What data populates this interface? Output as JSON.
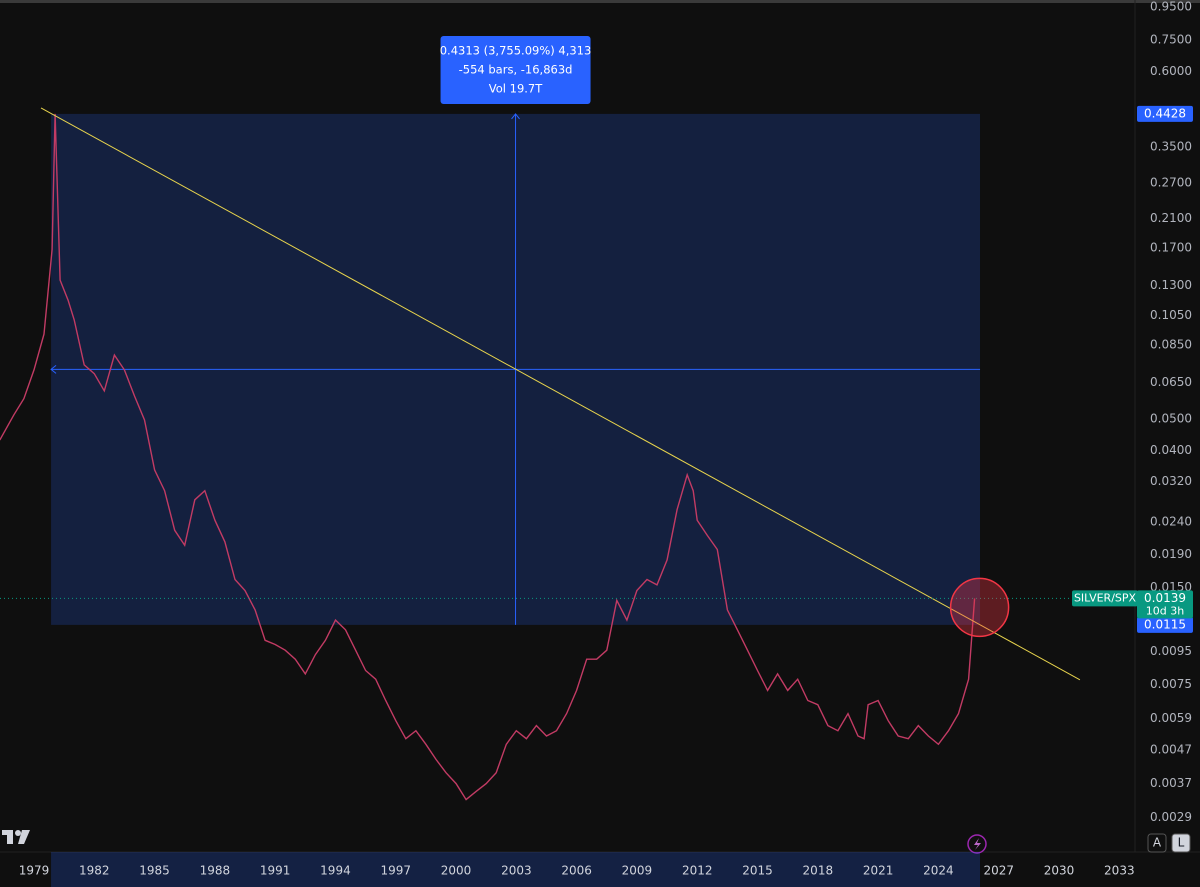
{
  "chart_data": {
    "type": "line",
    "log_scale": true,
    "symbol": "SILVER/SPX",
    "countdown": "10d 3h",
    "color": "#c23b64",
    "last_color": "#089981",
    "x": [
      1977.3,
      1978.0,
      1978.5,
      1979.0,
      1979.5,
      1979.9,
      1980.05,
      1980.3,
      1980.7,
      1981.0,
      1981.5,
      1982.0,
      1982.5,
      1983.0,
      1983.5,
      1984.0,
      1984.5,
      1985.0,
      1985.5,
      1986.0,
      1986.5,
      1987.0,
      1987.5,
      1988.0,
      1988.5,
      1989.0,
      1989.5,
      1990.0,
      1990.5,
      1991.0,
      1991.5,
      1992.0,
      1992.5,
      1993.0,
      1993.5,
      1994.0,
      1994.5,
      1995.0,
      1995.5,
      1996.0,
      1996.5,
      1997.0,
      1997.5,
      1998.0,
      1998.5,
      1999.0,
      1999.5,
      2000.0,
      2000.5,
      2001.0,
      2001.5,
      2002.0,
      2002.5,
      2003.0,
      2003.5,
      2004.0,
      2004.5,
      2005.0,
      2005.5,
      2006.0,
      2006.5,
      2007.0,
      2007.5,
      2008.0,
      2008.5,
      2009.0,
      2009.5,
      2010.0,
      2010.5,
      2011.0,
      2011.5,
      2011.8,
      2012.0,
      2012.5,
      2013.0,
      2013.5,
      2014.0,
      2014.5,
      2015.0,
      2015.5,
      2016.0,
      2016.5,
      2017.0,
      2017.5,
      2018.0,
      2018.5,
      2019.0,
      2019.5,
      2020.0,
      2020.3,
      2020.5,
      2021.0,
      2021.5,
      2022.0,
      2022.5,
      2023.0,
      2023.5,
      2024.0,
      2024.5,
      2025.0,
      2025.5,
      2025.8
    ],
    "values": [
      0.0431,
      0.0516,
      0.0579,
      0.0711,
      0.0918,
      0.168,
      0.4428,
      0.135,
      0.117,
      0.1016,
      0.0737,
      0.0692,
      0.0612,
      0.0791,
      0.0711,
      0.059,
      0.0497,
      0.0348,
      0.03,
      0.0226,
      0.0203,
      0.0281,
      0.03,
      0.0243,
      0.0208,
      0.0159,
      0.0147,
      0.0128,
      0.0103,
      0.01,
      0.0096,
      0.009,
      0.0081,
      0.0093,
      0.0103,
      0.0119,
      0.0111,
      0.0096,
      0.0083,
      0.0078,
      0.0067,
      0.0058,
      0.0051,
      0.0054,
      0.0049,
      0.0044,
      0.004,
      0.0037,
      0.0033,
      0.0035,
      0.0037,
      0.004,
      0.0049,
      0.0054,
      0.0051,
      0.0056,
      0.0052,
      0.0054,
      0.0061,
      0.0072,
      0.009,
      0.009,
      0.0096,
      0.0137,
      0.0119,
      0.0147,
      0.0159,
      0.0153,
      0.0183,
      0.0262,
      0.0336,
      0.03,
      0.0243,
      0.0218,
      0.0197,
      0.0128,
      0.0111,
      0.0096,
      0.0083,
      0.0072,
      0.0081,
      0.0072,
      0.0078,
      0.0067,
      0.0065,
      0.0056,
      0.0054,
      0.0061,
      0.0052,
      0.0051,
      0.0065,
      0.0067,
      0.0058,
      0.0052,
      0.0051,
      0.0056,
      0.0052,
      0.0049,
      0.0054,
      0.0061,
      0.0078,
      0.0139
    ],
    "xlim": [
      1977.31,
      2033.78
    ],
    "xticks": [
      1979,
      1982,
      1985,
      1988,
      1991,
      1994,
      1997,
      2000,
      2003,
      2006,
      2009,
      2012,
      2015,
      2018,
      2021,
      2024,
      2027,
      2030,
      2033
    ],
    "ylim": [
      0.00227,
      0.999
    ],
    "yticks": [
      {
        "value": 0.95,
        "label": "0.9500"
      },
      {
        "value": 0.75,
        "label": "0.7500"
      },
      {
        "value": 0.6,
        "label": "0.6000"
      },
      {
        "value": 0.35,
        "label": "0.3500"
      },
      {
        "value": 0.27,
        "label": "0.2700"
      },
      {
        "value": 0.21,
        "label": "0.2100"
      },
      {
        "value": 0.17,
        "label": "0.1700"
      },
      {
        "value": 0.13,
        "label": "0.1300"
      },
      {
        "value": 0.105,
        "label": "0.1050"
      },
      {
        "value": 0.085,
        "label": "0.0850"
      },
      {
        "value": 0.065,
        "label": "0.0650"
      },
      {
        "value": 0.05,
        "label": "0.0500"
      },
      {
        "value": 0.04,
        "label": "0.0400"
      },
      {
        "value": 0.032,
        "label": "0.0320"
      },
      {
        "value": 0.024,
        "label": "0.0240"
      },
      {
        "value": 0.019,
        "label": "0.0190"
      },
      {
        "value": 0.015,
        "label": "0.0150"
      },
      0.0095,
      0.0075,
      0.0059,
      0.0047,
      0.0037,
      0.0029
    ],
    "trendline": {
      "x": [
        1979.35,
        2031.04
      ],
      "values": [
        0.462,
        0.00777
      ],
      "color": "#e8d44d"
    },
    "measure": {
      "x": [
        1979.85,
        2026.07
      ],
      "values": [
        0.4428,
        0.0115
      ],
      "color": "#2962ff",
      "tooltip": [
        "0.4313 (3,755.09%) 4,313",
        "-554 bars, -16,863d",
        "Vol 19.7T"
      ]
    },
    "buttons": [
      "A",
      "L"
    ]
  }
}
